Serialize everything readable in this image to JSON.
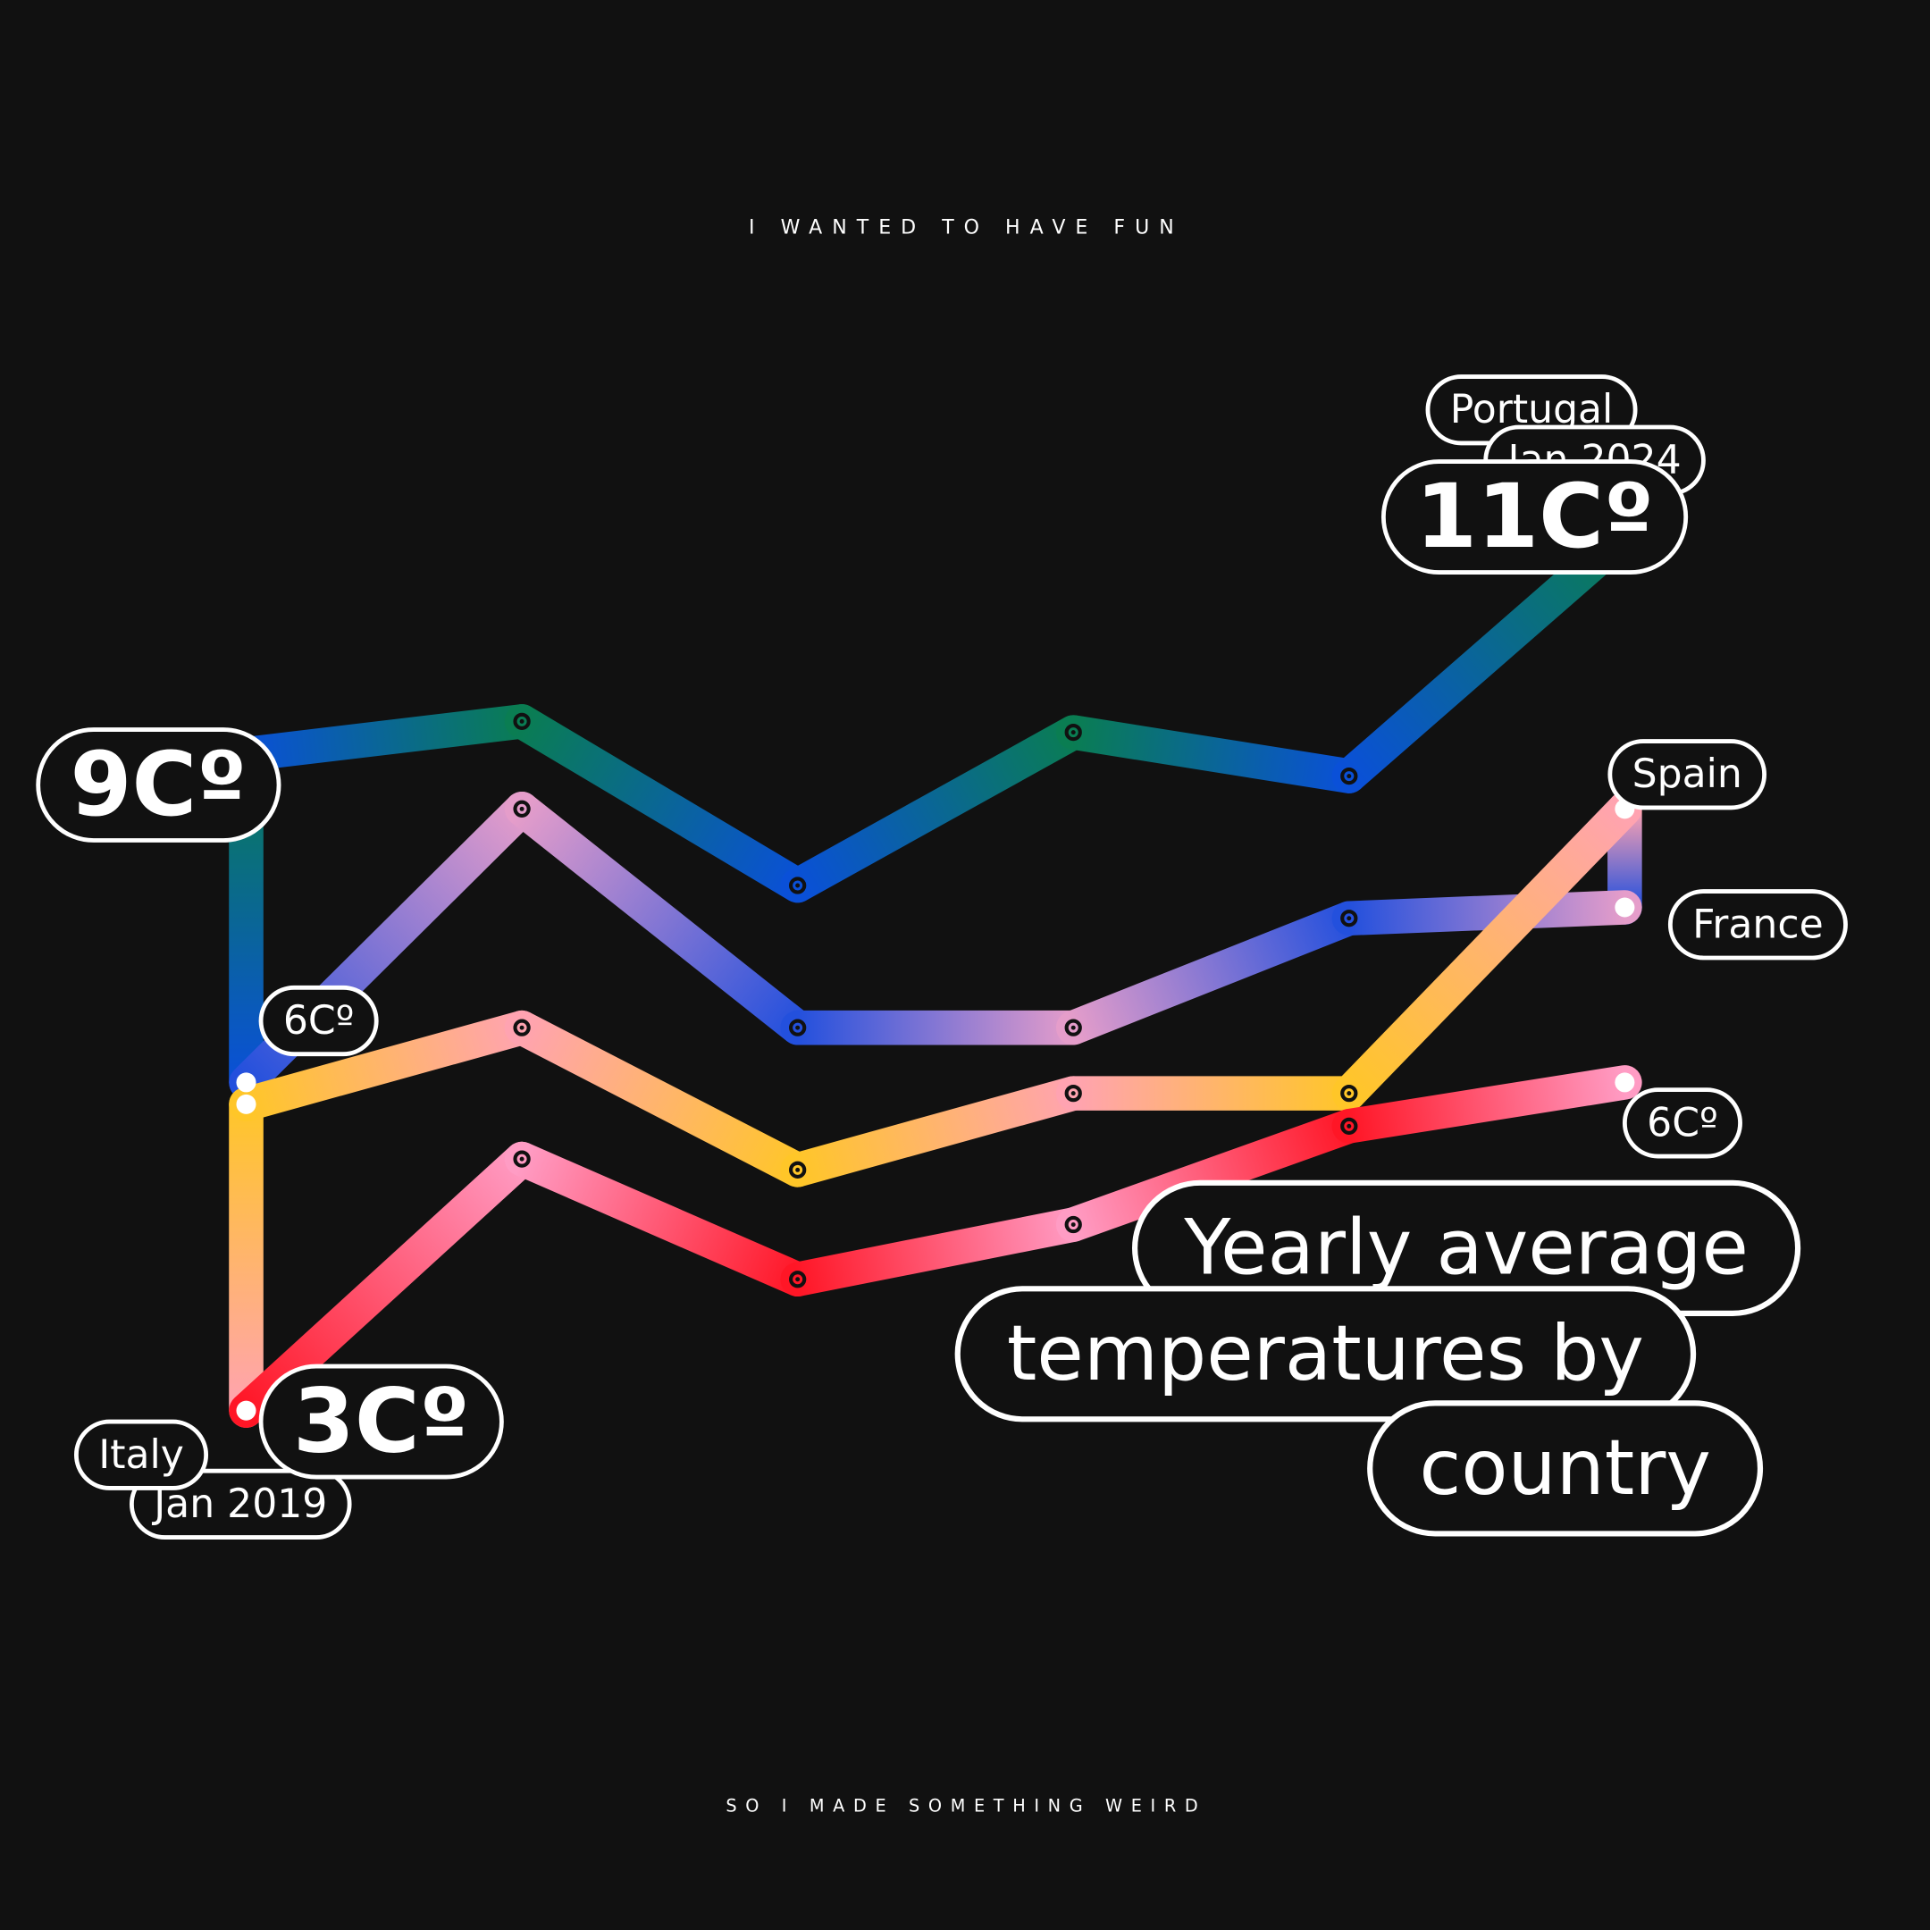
{
  "chart_data": {
    "type": "line",
    "title": [
      "Yearly average",
      "temperatures by",
      "country"
    ],
    "subtitle": "I WANTED TO HAVE FUN",
    "caption": "SO I MADE SOMETHING WEIRD",
    "categories": [
      "Jan 2019",
      null,
      null,
      null,
      null,
      "Jan 2024"
    ],
    "series": [
      {
        "name": "Portugal",
        "colors": [
          "#0a50d8",
          "#0a7d52"
        ],
        "values": [
          9,
          9.3,
          7.8,
          9.2,
          8.8,
          11
        ],
        "value_labels": [
          "9Cº",
          null,
          null,
          null,
          null,
          "11Cº"
        ]
      },
      {
        "name": "France",
        "colors": [
          "#2350dd",
          "#e59dca"
        ],
        "values": [
          6,
          8.5,
          6.5,
          6.5,
          7.5,
          7.6
        ],
        "value_labels": [
          "6Cº",
          null,
          null,
          null,
          null,
          null
        ]
      },
      {
        "name": "Spain",
        "colors": [
          "#ffc628",
          "#ffa3b1"
        ],
        "values": [
          5.8,
          6.5,
          5.2,
          5.9,
          5.9,
          8.5
        ]
      },
      {
        "name": "Italy",
        "colors": [
          "#ff1626",
          "#ff9cc4"
        ],
        "values": [
          3,
          5.3,
          4.2,
          4.7,
          5.6,
          6
        ],
        "value_labels": [
          "3Cº",
          null,
          null,
          null,
          null,
          "6Cº"
        ]
      }
    ]
  }
}
